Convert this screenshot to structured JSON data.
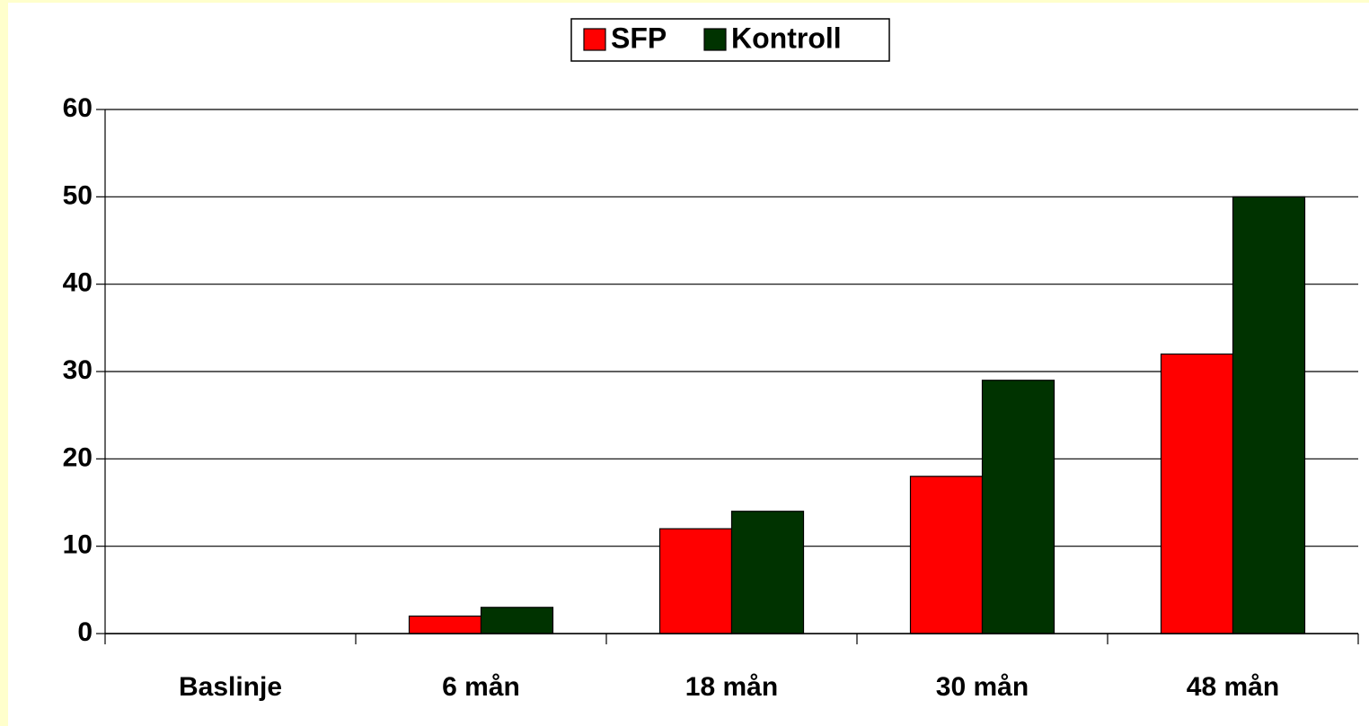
{
  "chart_data": {
    "type": "bar",
    "categories": [
      "Baslinje",
      "6 mån",
      "18 mån",
      "30 mån",
      "48 mån"
    ],
    "series": [
      {
        "name": "SFP",
        "color": "#ff0000",
        "values": [
          0,
          2,
          12,
          18,
          32
        ]
      },
      {
        "name": "Kontroll",
        "color": "#003300",
        "values": [
          0,
          3,
          14,
          29,
          50
        ]
      }
    ],
    "ylim": [
      0,
      60
    ],
    "yticks": [
      0,
      10,
      20,
      30,
      40,
      50,
      60
    ],
    "grid": true,
    "legend": "top"
  }
}
